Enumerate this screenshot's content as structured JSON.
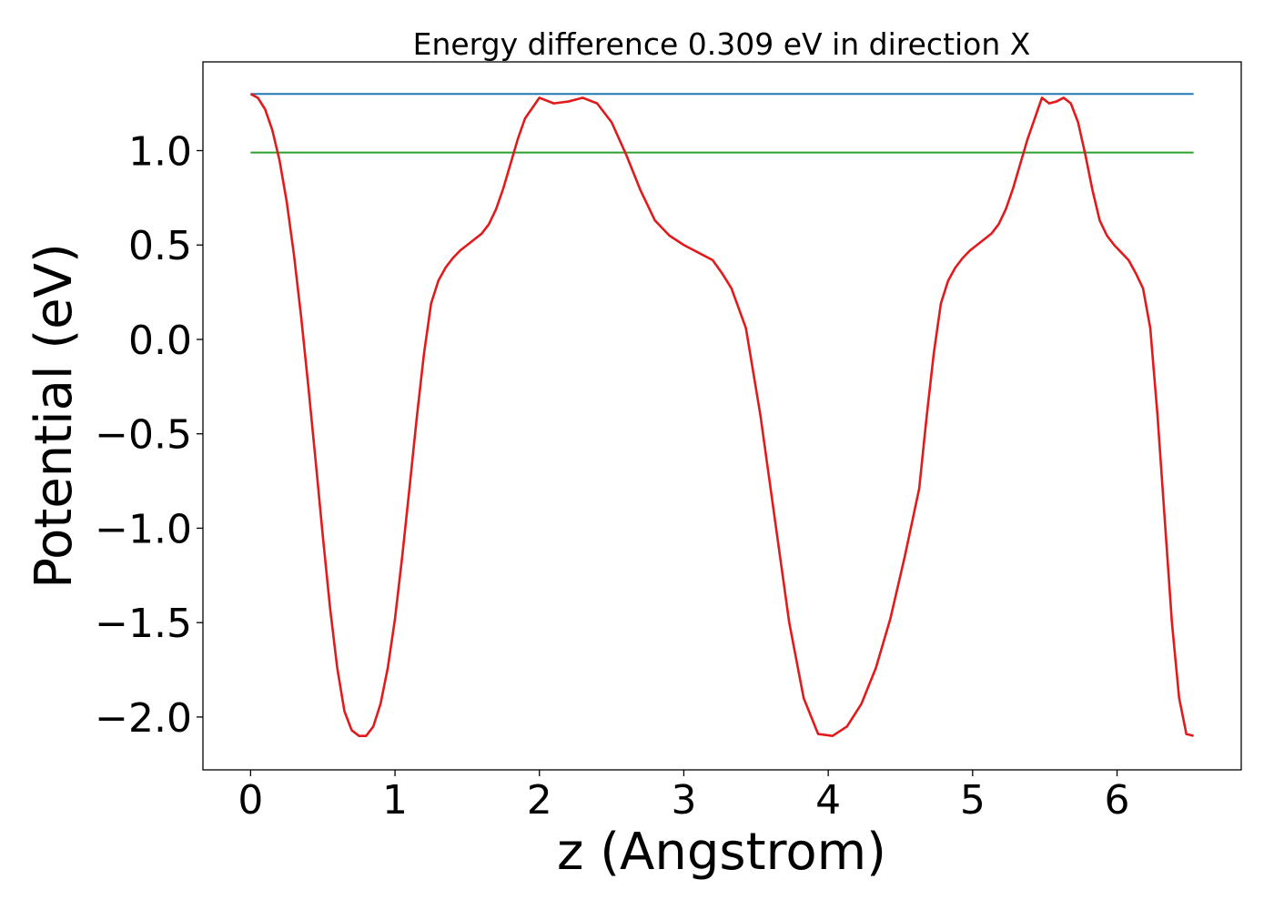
{
  "chart_data": {
    "type": "line",
    "title": "Energy difference 0.309 eV in direction X",
    "xlabel": "z (Angstrom)",
    "ylabel": "Potential (eV)",
    "xlim": [
      -0.33,
      6.86
    ],
    "ylim": [
      -2.28,
      1.47
    ],
    "xticks": [
      0,
      1,
      2,
      3,
      4,
      5,
      6
    ],
    "xtick_labels": [
      "0",
      "1",
      "2",
      "3",
      "4",
      "5",
      "6"
    ],
    "yticks": [
      -2.0,
      -1.5,
      -1.0,
      -0.5,
      0.0,
      0.5,
      1.0
    ],
    "ytick_labels": [
      "−2.0",
      "−1.5",
      "−1.0",
      "−0.5",
      "0.0",
      "0.5",
      "1.0"
    ],
    "grid": false,
    "series": [
      {
        "color": "#1f77b4",
        "x": [
          0,
          6.53
        ],
        "y": [
          1.3,
          1.3
        ]
      },
      {
        "color": "#2ca02c",
        "x": [
          0,
          6.53
        ],
        "y": [
          0.99,
          0.99
        ]
      },
      {
        "color": "#e31a1c",
        "x": [
          0,
          0.05,
          0.1,
          0.15,
          0.2,
          0.25,
          0.3,
          0.35,
          0.4,
          0.45,
          0.5,
          0.55,
          0.6,
          0.65,
          0.7,
          0.75,
          0.8,
          0.85,
          0.9,
          0.95,
          1.0,
          1.05,
          1.1,
          1.15,
          1.2,
          1.25,
          1.3,
          1.35,
          1.4,
          1.45,
          1.5,
          1.55,
          1.6,
          1.65,
          1.7,
          1.75,
          1.8,
          1.85,
          1.9,
          2.0,
          2.1,
          2.2,
          2.3,
          2.4,
          2.5,
          2.6,
          2.7,
          2.8,
          2.9,
          3.0,
          3.1,
          3.2,
          3.265,
          3.33,
          3.43,
          3.53,
          3.63,
          3.73,
          3.83,
          3.93,
          4.03,
          4.13,
          4.23,
          4.33,
          4.43,
          4.53,
          4.63,
          4.68,
          4.73,
          4.78,
          4.83,
          4.88,
          4.93,
          4.98,
          5.03,
          5.08,
          5.13,
          5.18,
          5.23,
          5.28,
          5.33,
          5.38,
          5.43,
          5.48,
          5.53,
          5.58,
          5.63,
          5.68,
          5.73,
          5.78,
          5.83,
          5.88,
          5.93,
          5.98,
          6.03,
          6.08,
          6.13,
          6.18,
          6.23,
          6.28,
          6.33,
          6.38,
          6.43,
          6.48,
          6.53
        ],
        "y": [
          1.3,
          1.28,
          1.22,
          1.11,
          0.95,
          0.73,
          0.45,
          0.12,
          -0.25,
          -0.64,
          -1.04,
          -1.42,
          -1.74,
          -1.97,
          -2.07,
          -2.1,
          -2.1,
          -2.05,
          -1.93,
          -1.74,
          -1.48,
          -1.15,
          -0.79,
          -0.42,
          -0.08,
          0.19,
          0.31,
          0.38,
          0.43,
          0.47,
          0.5,
          0.53,
          0.56,
          0.61,
          0.69,
          0.8,
          0.93,
          1.06,
          1.17,
          1.28,
          1.25,
          1.26,
          1.28,
          1.25,
          1.15,
          0.98,
          0.79,
          0.63,
          0.55,
          0.5,
          0.46,
          0.42,
          0.35,
          0.27,
          0.06,
          -0.4,
          -0.95,
          -1.5,
          -1.9,
          -2.09,
          -2.1,
          -2.05,
          -1.93,
          -1.74,
          -1.48,
          -1.15,
          -0.79,
          -0.42,
          -0.08,
          0.19,
          0.31,
          0.38,
          0.43,
          0.47,
          0.5,
          0.53,
          0.56,
          0.61,
          0.69,
          0.8,
          0.93,
          1.06,
          1.17,
          1.28,
          1.25,
          1.26,
          1.28,
          1.25,
          1.15,
          0.98,
          0.79,
          0.63,
          0.55,
          0.5,
          0.46,
          0.42,
          0.35,
          0.27,
          0.06,
          -0.4,
          -0.95,
          -1.5,
          -1.9,
          -2.09,
          -2.1
        ]
      }
    ]
  }
}
